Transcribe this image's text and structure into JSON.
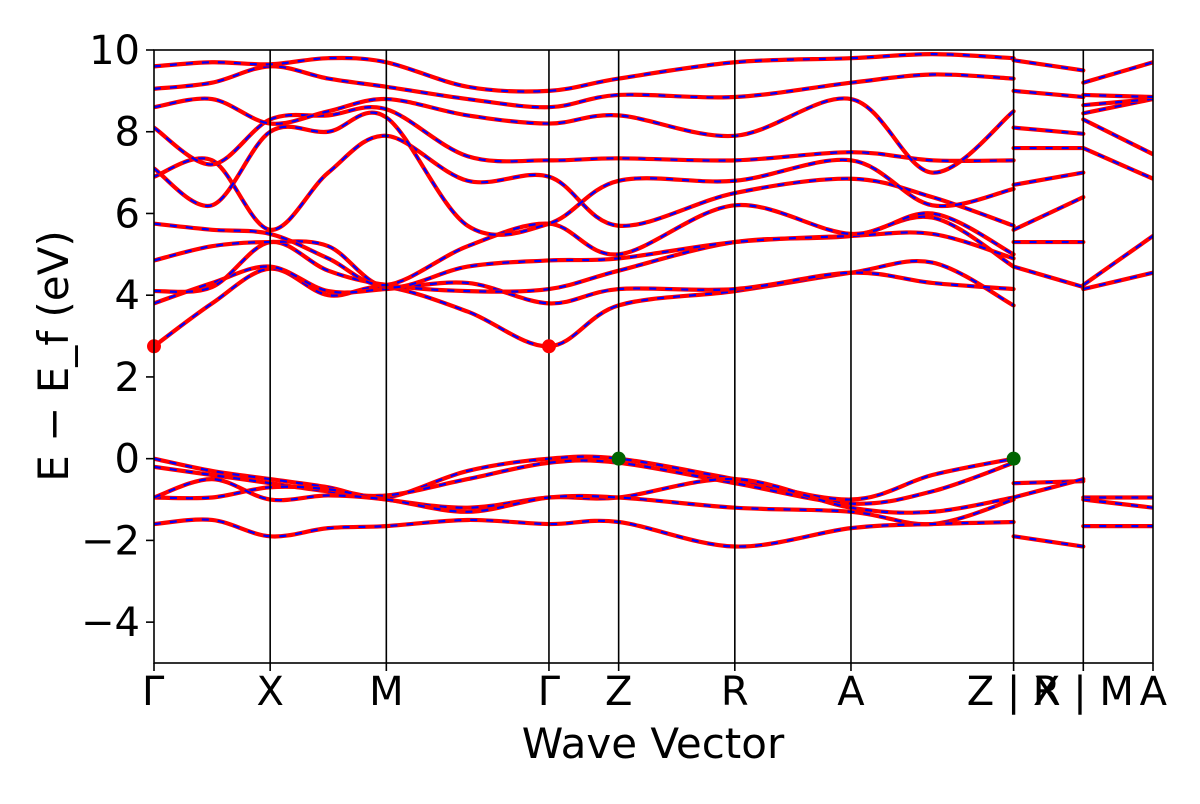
{
  "chart_data": {
    "type": "line",
    "title": "",
    "xlabel": "Wave Vector",
    "ylabel": "E − E_f (eV)",
    "ylim": [
      -5,
      10
    ],
    "yticks": [
      -4,
      -2,
      0,
      2,
      4,
      6,
      8,
      10
    ],
    "ytick_labels": [
      "−4",
      "−2",
      "0",
      "2",
      "4",
      "6",
      "8",
      "10"
    ],
    "kpath": {
      "positions": [
        0,
        1,
        2,
        3.4,
        4.0,
        5.0,
        6.0,
        7.4,
        8.0,
        8.6
      ],
      "labels": [
        "Γ",
        "X",
        "M",
        "Γ",
        "Z",
        "R",
        "A",
        "Z | X",
        "R | M",
        "A"
      ],
      "breaks": [
        7.4,
        8.0
      ]
    },
    "grid": false,
    "legend": "none",
    "colors": {
      "band_solid": "#ff0000",
      "band_dashed": "#0000ff",
      "vbm_marker": "#006400",
      "cbm_marker": "#ff0000"
    },
    "series": [
      {
        "role": "valence",
        "x": [
          0,
          0.5,
          1,
          1.5,
          2,
          2.7,
          3.4,
          4.0,
          5.0,
          6.0,
          6.7,
          7.4
        ],
        "y": [
          0,
          -0.3,
          -0.5,
          -0.7,
          -0.95,
          -0.3,
          0,
          0,
          -0.5,
          -1.0,
          -0.4,
          0
        ]
      },
      {
        "role": "valence",
        "x": [
          0,
          0.5,
          1,
          1.5,
          2,
          2.7,
          3.4,
          4.0,
          5.0,
          6.0,
          6.7,
          7.4
        ],
        "y": [
          -0.2,
          -0.4,
          -0.6,
          -0.8,
          -0.9,
          -0.5,
          -0.1,
          -0.1,
          -0.6,
          -1.1,
          -0.8,
          -0.1
        ]
      },
      {
        "role": "valence",
        "x": [
          0,
          0.5,
          1,
          1.5,
          2,
          2.7,
          3.4,
          4.0,
          5.0,
          6.0,
          6.7,
          7.4
        ],
        "y": [
          -0.95,
          -0.95,
          -0.7,
          -0.75,
          -1.0,
          -1.2,
          -0.95,
          -0.95,
          -0.5,
          -1.2,
          -1.3,
          -0.95
        ]
      },
      {
        "role": "valence",
        "x": [
          0,
          0.5,
          1,
          1.5,
          2,
          2.7,
          3.4,
          4.0,
          5.0,
          6.0,
          6.7,
          7.4
        ],
        "y": [
          -0.95,
          -0.5,
          -1.0,
          -0.9,
          -1.0,
          -1.3,
          -0.95,
          -0.95,
          -1.2,
          -1.3,
          -1.6,
          -1.0
        ]
      },
      {
        "role": "valence",
        "x": [
          0,
          0.5,
          1,
          1.5,
          2,
          2.7,
          3.4,
          4.0,
          5.0,
          6.0,
          6.7,
          7.4
        ],
        "y": [
          -1.6,
          -1.5,
          -1.9,
          -1.7,
          -1.65,
          -1.5,
          -1.6,
          -1.55,
          -2.15,
          -1.7,
          -1.6,
          -1.55
        ]
      },
      {
        "role": "valence",
        "x": [
          7.4,
          8.0
        ],
        "y": [
          -0.6,
          -0.55
        ]
      },
      {
        "role": "valence",
        "x": [
          7.4,
          8.0
        ],
        "y": [
          -0.95,
          -0.5
        ]
      },
      {
        "role": "valence",
        "x": [
          7.4,
          8.0
        ],
        "y": [
          -1.9,
          -2.15
        ]
      },
      {
        "role": "valence",
        "x": [
          8.0,
          8.6
        ],
        "y": [
          -0.95,
          -0.95
        ]
      },
      {
        "role": "valence",
        "x": [
          8.0,
          8.6
        ],
        "y": [
          -1.0,
          -1.2
        ]
      },
      {
        "role": "valence",
        "x": [
          8.0,
          8.6
        ],
        "y": [
          -1.65,
          -1.65
        ]
      },
      {
        "role": "conduction",
        "x": [
          0,
          0.5,
          1,
          1.5,
          2,
          2.7,
          3.4,
          4.0,
          5.0,
          6.0,
          6.7,
          7.4
        ],
        "y": [
          2.75,
          3.8,
          4.65,
          4.0,
          4.2,
          3.6,
          2.75,
          3.75,
          4.1,
          4.55,
          4.8,
          3.75
        ]
      },
      {
        "role": "conduction",
        "x": [
          0,
          0.5,
          1,
          1.5,
          2,
          2.7,
          3.4,
          4.0,
          5.0,
          6.0,
          6.7,
          7.4
        ],
        "y": [
          3.8,
          4.3,
          4.7,
          4.1,
          4.15,
          4.3,
          3.8,
          4.15,
          4.15,
          4.55,
          4.3,
          4.15
        ]
      },
      {
        "role": "conduction",
        "x": [
          0,
          0.5,
          1,
          1.5,
          2,
          2.7,
          3.4,
          4.0,
          5.0,
          6.0,
          6.7,
          7.4
        ],
        "y": [
          4.1,
          4.2,
          5.3,
          4.6,
          4.25,
          4.1,
          4.15,
          4.6,
          5.3,
          5.45,
          5.9,
          4.7
        ]
      },
      {
        "role": "conduction",
        "x": [
          0,
          0.5,
          1,
          1.5,
          2,
          2.7,
          3.4,
          4.0,
          5.0,
          6.0,
          6.7,
          7.4
        ],
        "y": [
          4.85,
          5.2,
          5.3,
          5.2,
          4.2,
          4.7,
          4.85,
          4.9,
          5.3,
          5.45,
          5.5,
          4.9
        ]
      },
      {
        "role": "conduction",
        "x": [
          0,
          0.5,
          1,
          1.5,
          2,
          2.7,
          3.4,
          4.0,
          5.0,
          6.0,
          6.7,
          7.4
        ],
        "y": [
          5.75,
          5.6,
          5.5,
          4.9,
          4.25,
          5.2,
          5.75,
          5.0,
          6.2,
          5.5,
          6.0,
          5.0
        ]
      },
      {
        "role": "conduction",
        "x": [
          0,
          0.5,
          1,
          1.5,
          2,
          2.7,
          3.4,
          4.0,
          5.0,
          6.0,
          6.7,
          7.4
        ],
        "y": [
          6.9,
          7.3,
          5.6,
          7.0,
          7.9,
          6.8,
          6.9,
          5.7,
          6.5,
          6.85,
          6.4,
          5.7
        ]
      },
      {
        "role": "conduction",
        "x": [
          0,
          0.5,
          1,
          1.5,
          2,
          2.7,
          3.4,
          4.0,
          5.0,
          6.0,
          6.7,
          7.4
        ],
        "y": [
          7.1,
          6.2,
          8.0,
          8.0,
          8.35,
          5.7,
          5.75,
          6.8,
          6.8,
          7.3,
          6.2,
          6.6
        ]
      },
      {
        "role": "conduction",
        "x": [
          0,
          0.5,
          1,
          1.5,
          2,
          2.7,
          3.4,
          4.0,
          5.0,
          6.0,
          6.7,
          7.4
        ],
        "y": [
          8.1,
          7.2,
          8.3,
          8.4,
          8.55,
          7.4,
          7.3,
          7.35,
          7.3,
          7.5,
          7.3,
          7.3
        ]
      },
      {
        "role": "conduction",
        "x": [
          0,
          0.5,
          1,
          1.5,
          2,
          2.7,
          3.4,
          4.0,
          5.0,
          6.0,
          6.7,
          7.4
        ],
        "y": [
          8.6,
          8.8,
          8.2,
          8.5,
          8.8,
          8.4,
          8.2,
          8.4,
          7.9,
          8.8,
          7.0,
          8.5
        ]
      },
      {
        "role": "conduction",
        "x": [
          0,
          0.5,
          1,
          1.5,
          2,
          2.7,
          3.4,
          4.0,
          5.0,
          6.0,
          6.7,
          7.4
        ],
        "y": [
          9.05,
          9.2,
          9.6,
          9.3,
          9.1,
          8.8,
          8.6,
          8.9,
          8.85,
          9.2,
          9.4,
          9.3
        ]
      },
      {
        "role": "conduction",
        "x": [
          0,
          0.5,
          1,
          1.5,
          2,
          2.7,
          3.4,
          4.0,
          5.0,
          6.0,
          6.7,
          7.4
        ],
        "y": [
          9.6,
          9.7,
          9.65,
          9.8,
          9.7,
          9.1,
          9.0,
          9.3,
          9.7,
          9.8,
          9.9,
          9.8
        ]
      },
      {
        "role": "conduction",
        "x": [
          7.4,
          8.0
        ],
        "y": [
          4.7,
          4.2
        ]
      },
      {
        "role": "conduction",
        "x": [
          7.4,
          8.0
        ],
        "y": [
          5.3,
          5.3
        ]
      },
      {
        "role": "conduction",
        "x": [
          7.4,
          8.0
        ],
        "y": [
          5.6,
          6.4
        ]
      },
      {
        "role": "conduction",
        "x": [
          7.4,
          8.0
        ],
        "y": [
          6.7,
          7.0
        ]
      },
      {
        "role": "conduction",
        "x": [
          7.4,
          8.0
        ],
        "y": [
          7.6,
          7.6
        ]
      },
      {
        "role": "conduction",
        "x": [
          7.4,
          8.0
        ],
        "y": [
          8.1,
          7.95
        ]
      },
      {
        "role": "conduction",
        "x": [
          7.4,
          8.0
        ],
        "y": [
          9.0,
          8.85
        ]
      },
      {
        "role": "conduction",
        "x": [
          7.4,
          8.0
        ],
        "y": [
          9.75,
          9.5
        ]
      },
      {
        "role": "conduction",
        "x": [
          8.0,
          8.6
        ],
        "y": [
          4.15,
          4.55
        ]
      },
      {
        "role": "conduction",
        "x": [
          8.0,
          8.6
        ],
        "y": [
          4.25,
          5.45
        ]
      },
      {
        "role": "conduction",
        "x": [
          8.0,
          8.6
        ],
        "y": [
          7.6,
          6.85
        ]
      },
      {
        "role": "conduction",
        "x": [
          8.0,
          8.6
        ],
        "y": [
          8.3,
          7.45
        ]
      },
      {
        "role": "conduction",
        "x": [
          8.0,
          8.6
        ],
        "y": [
          8.45,
          8.8
        ]
      },
      {
        "role": "conduction",
        "x": [
          8.0,
          8.6
        ],
        "y": [
          8.65,
          8.8
        ]
      },
      {
        "role": "conduction",
        "x": [
          8.0,
          8.6
        ],
        "y": [
          8.9,
          8.85
        ]
      },
      {
        "role": "conduction",
        "x": [
          8.0,
          8.6
        ],
        "y": [
          9.2,
          9.7
        ]
      }
    ],
    "markers": [
      {
        "kind": "cbm",
        "x": 0,
        "y": 2.75
      },
      {
        "kind": "cbm",
        "x": 3.4,
        "y": 2.75
      },
      {
        "kind": "vbm",
        "x": 4.0,
        "y": 0
      },
      {
        "kind": "vbm",
        "x": 7.4,
        "y": 0
      }
    ]
  }
}
